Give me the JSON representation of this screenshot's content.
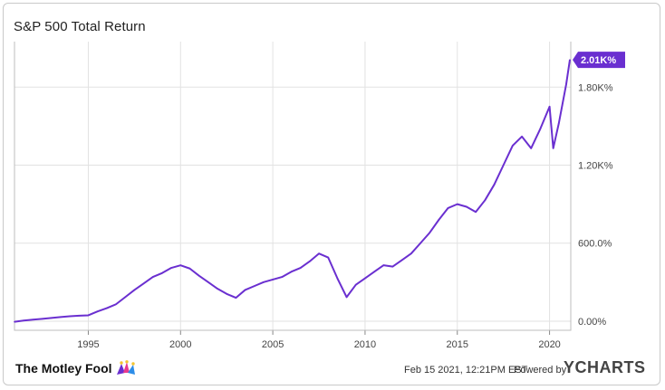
{
  "chart_data": {
    "type": "line",
    "title": "S&P 500 Total Return",
    "xlabel": "",
    "ylabel": "",
    "x_ticks": [
      "1995",
      "2000",
      "2005",
      "2010",
      "2015",
      "2020"
    ],
    "y_ticks": [
      "0.00%",
      "600.0%",
      "1.20K%",
      "1.80K%"
    ],
    "y_range": [
      -70,
      2150
    ],
    "grid": true,
    "line_color": "#6a2fd0",
    "last_value_label": "2.01K%",
    "series": [
      {
        "x": [
          1991.0,
          1991.5,
          1992.0,
          1992.5,
          1993.0,
          1993.5,
          1994.0,
          1994.5,
          1995.0,
          1995.5,
          1996.0,
          1996.5,
          1997.0,
          1997.5,
          1998.0,
          1998.5,
          1999.0,
          1999.5,
          2000.0,
          2000.5,
          2001.0,
          2001.5,
          2002.0,
          2002.5,
          2003.0,
          2003.5,
          2004.0,
          2004.5,
          2005.0,
          2005.5,
          2006.0,
          2006.5,
          2007.0,
          2007.5,
          2008.0,
          2008.5,
          2009.0,
          2009.5,
          2010.0,
          2010.5,
          2011.0,
          2011.5,
          2012.0,
          2012.5,
          2013.0,
          2013.5,
          2014.0,
          2014.5,
          2015.0,
          2015.5,
          2016.0,
          2016.5,
          2017.0,
          2017.5,
          2018.0,
          2018.5,
          2019.0,
          2019.5,
          2020.0,
          2020.2,
          2020.5,
          2020.9,
          2021.1
        ],
        "values": [
          -5,
          5,
          12,
          18,
          25,
          32,
          38,
          42,
          45,
          75,
          100,
          130,
          185,
          240,
          290,
          340,
          370,
          410,
          430,
          405,
          350,
          300,
          250,
          210,
          180,
          240,
          270,
          300,
          320,
          340,
          380,
          410,
          460,
          520,
          490,
          330,
          185,
          280,
          330,
          380,
          430,
          420,
          470,
          520,
          600,
          680,
          780,
          870,
          900,
          880,
          840,
          930,
          1050,
          1200,
          1350,
          1420,
          1330,
          1480,
          1650,
          1330,
          1520,
          1820,
          2010
        ]
      }
    ]
  },
  "footer": {
    "brand": "The Motley Fool",
    "timestamp": "Feb 15 2021, 12:21PM EST.",
    "powered_by": "Powered by",
    "provider": "YCHARTS"
  }
}
